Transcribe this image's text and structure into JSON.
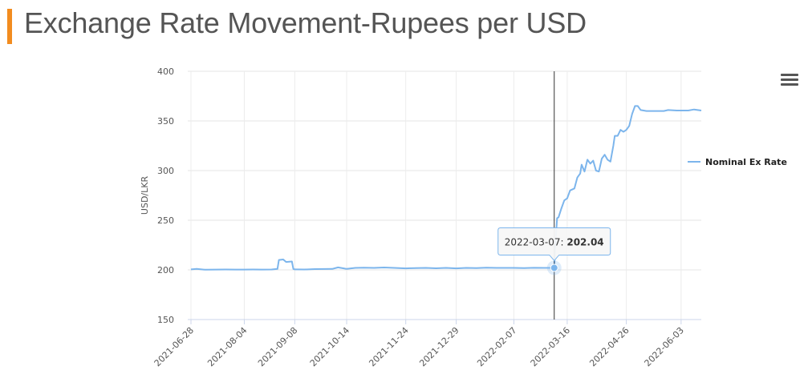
{
  "page": {
    "title": "Exchange Rate Movement-Rupees per USD",
    "accent_color": "#f28c1f"
  },
  "menu": {
    "icon": "hamburger-icon"
  },
  "chart_data": {
    "type": "line",
    "title": "",
    "xlabel": "",
    "ylabel": "USD/LKR",
    "ylim": [
      150,
      400
    ],
    "yticks": [
      "150",
      "200",
      "250",
      "300",
      "350",
      "400"
    ],
    "xticks": [
      "2021-06-28",
      "2021-08-04",
      "2021-09-08",
      "2021-10-14",
      "2021-11-24",
      "2021-12-29",
      "2022-02-07",
      "2022-03-16",
      "2022-04-26",
      "2022-06-03"
    ],
    "x_start": "2021-06-28",
    "x_end": "2022-06-17",
    "grid": true,
    "legend_position": "right",
    "series": [
      {
        "name": "Nominal Ex Rate",
        "color": "#7cb5ec",
        "points": [
          [
            "2021-06-28",
            200.5
          ],
          [
            "2021-07-02",
            201.0
          ],
          [
            "2021-07-08",
            200.2
          ],
          [
            "2021-07-15",
            200.3
          ],
          [
            "2021-07-22",
            200.4
          ],
          [
            "2021-07-29",
            200.3
          ],
          [
            "2021-08-04",
            200.3
          ],
          [
            "2021-08-10",
            200.4
          ],
          [
            "2021-08-16",
            200.3
          ],
          [
            "2021-08-23",
            200.4
          ],
          [
            "2021-08-27",
            201.0
          ],
          [
            "2021-08-28",
            210.0
          ],
          [
            "2021-08-31",
            210.5
          ],
          [
            "2021-09-02",
            208.0
          ],
          [
            "2021-09-06",
            208.5
          ],
          [
            "2021-09-07",
            201.0
          ],
          [
            "2021-09-08",
            200.5
          ],
          [
            "2021-09-15",
            200.4
          ],
          [
            "2021-09-22",
            200.8
          ],
          [
            "2021-09-29",
            200.9
          ],
          [
            "2021-10-04",
            201.0
          ],
          [
            "2021-10-08",
            202.5
          ],
          [
            "2021-10-12",
            201.5
          ],
          [
            "2021-10-14",
            201.0
          ],
          [
            "2021-10-20",
            202.0
          ],
          [
            "2021-10-26",
            202.2
          ],
          [
            "2021-11-02",
            202.0
          ],
          [
            "2021-11-09",
            202.4
          ],
          [
            "2021-11-16",
            202.0
          ],
          [
            "2021-11-24",
            201.5
          ],
          [
            "2021-12-01",
            201.8
          ],
          [
            "2021-12-08",
            202.0
          ],
          [
            "2021-12-15",
            201.6
          ],
          [
            "2021-12-22",
            202.0
          ],
          [
            "2021-12-29",
            201.5
          ],
          [
            "2022-01-05",
            202.0
          ],
          [
            "2022-01-12",
            201.8
          ],
          [
            "2022-01-19",
            202.2
          ],
          [
            "2022-01-26",
            202.0
          ],
          [
            "2022-02-02",
            202.0
          ],
          [
            "2022-02-07",
            202.0
          ],
          [
            "2022-02-14",
            201.8
          ],
          [
            "2022-02-21",
            202.1
          ],
          [
            "2022-02-28",
            202.0
          ],
          [
            "2022-03-07",
            202.04
          ],
          [
            "2022-03-08",
            230.0
          ],
          [
            "2022-03-09",
            252.0
          ],
          [
            "2022-03-10",
            253.0
          ],
          [
            "2022-03-12",
            262.0
          ],
          [
            "2022-03-14",
            270.0
          ],
          [
            "2022-03-16",
            272.0
          ],
          [
            "2022-03-18",
            280.0
          ],
          [
            "2022-03-21",
            282.0
          ],
          [
            "2022-03-23",
            293.0
          ],
          [
            "2022-03-25",
            297.0
          ],
          [
            "2022-03-26",
            306.0
          ],
          [
            "2022-03-28",
            299.0
          ],
          [
            "2022-03-30",
            311.0
          ],
          [
            "2022-04-01",
            307.0
          ],
          [
            "2022-04-03",
            310.0
          ],
          [
            "2022-04-05",
            300.0
          ],
          [
            "2022-04-07",
            299.0
          ],
          [
            "2022-04-09",
            312.0
          ],
          [
            "2022-04-11",
            316.0
          ],
          [
            "2022-04-13",
            311.0
          ],
          [
            "2022-04-15",
            309.0
          ],
          [
            "2022-04-17",
            325.0
          ],
          [
            "2022-04-18",
            335.0
          ],
          [
            "2022-04-20",
            335.0
          ],
          [
            "2022-04-22",
            341.0
          ],
          [
            "2022-04-24",
            339.0
          ],
          [
            "2022-04-26",
            341.0
          ],
          [
            "2022-04-28",
            345.0
          ],
          [
            "2022-04-30",
            357.0
          ],
          [
            "2022-05-02",
            365.0
          ],
          [
            "2022-05-04",
            365.0
          ],
          [
            "2022-05-06",
            361.0
          ],
          [
            "2022-05-10",
            360.0
          ],
          [
            "2022-05-16",
            360.0
          ],
          [
            "2022-05-22",
            360.0
          ],
          [
            "2022-05-25",
            361.0
          ],
          [
            "2022-05-31",
            360.5
          ],
          [
            "2022-06-03",
            360.5
          ],
          [
            "2022-06-08",
            360.5
          ],
          [
            "2022-06-12",
            361.5
          ],
          [
            "2022-06-17",
            360.5
          ]
        ]
      }
    ],
    "tooltip": {
      "date": "2022-03-07",
      "value": "202.04",
      "separator": ": "
    }
  }
}
